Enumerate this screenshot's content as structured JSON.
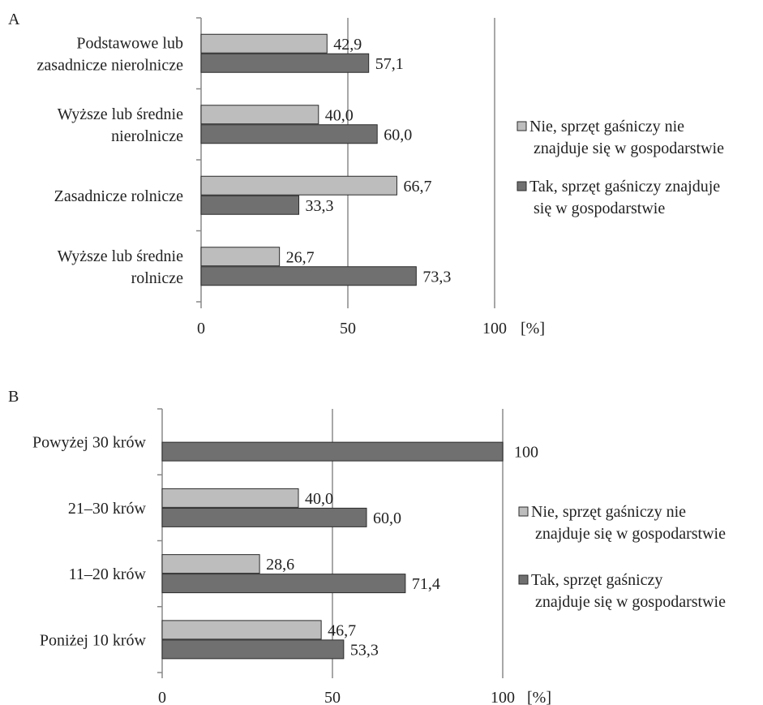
{
  "colors": {
    "no": "#bdbdbd",
    "yes": "#707070",
    "grid": "#a8a8a8",
    "axis": "#888888",
    "stroke": "#2a2a2a"
  },
  "chart_data": [
    {
      "type": "bar",
      "panel_label": "A",
      "orientation": "horizontal",
      "categories": [
        [
          "Podstawowe lub",
          "zasadnicze nierolnicze"
        ],
        [
          "Wyższe lub średnie",
          "nierolnicze"
        ],
        [
          "Zasadnicze rolnicze"
        ],
        [
          "Wyższe lub średnie",
          "rolnicze"
        ]
      ],
      "series": [
        {
          "name": "Nie, sprzęt gaśniczy nie znajduje się w gospodarstwie",
          "legend_lines": [
            "Nie, sprzęt gaśniczy nie",
            "znajduje się w gospodarstwie"
          ],
          "values": [
            42.9,
            40.0,
            66.7,
            26.7
          ],
          "labels": [
            "42,9",
            "40,0",
            "66,7",
            "26,7"
          ]
        },
        {
          "name": "Tak, sprzęt gaśniczy znajduje się w gospodarstwie",
          "legend_lines": [
            "Tak, sprzęt gaśniczy znajduje",
            "się w gospodarstwie"
          ],
          "values": [
            57.1,
            60.0,
            33.3,
            73.3
          ],
          "labels": [
            "57,1",
            "60,0",
            "33,3",
            "73,3"
          ]
        }
      ],
      "xlim": [
        0,
        100
      ],
      "xticks": [
        "0",
        "50",
        "100"
      ],
      "unit": "[%]",
      "grid": true,
      "legend_position": "right"
    },
    {
      "type": "bar",
      "panel_label": "B",
      "orientation": "horizontal",
      "categories": [
        [
          "Powyżej 30 krów"
        ],
        [
          "21–30 krów"
        ],
        [
          "11–20 krów"
        ],
        [
          "Poniżej 10 krów"
        ]
      ],
      "series": [
        {
          "name": "Nie, sprzęt gaśniczy nie znajduje się w gospodarstwie",
          "legend_lines": [
            "Nie, sprzęt gaśniczy nie",
            "znajduje się w gospodarstwie"
          ],
          "values": [
            0,
            40.0,
            28.6,
            46.7
          ],
          "labels": [
            "",
            "40,0",
            "28,6",
            "46,7"
          ]
        },
        {
          "name": "Tak, sprzęt gaśniczy znajduje się w gospodarstwie",
          "legend_lines": [
            "Tak, sprzęt gaśniczy",
            "znajduje się w gospodarstwie"
          ],
          "values": [
            100,
            60.0,
            71.4,
            53.3
          ],
          "labels": [
            "100",
            "60,0",
            "71,4",
            "53,3"
          ]
        }
      ],
      "xlim": [
        0,
        100
      ],
      "xticks": [
        "0",
        "50",
        "100"
      ],
      "unit": "[%]",
      "grid": true,
      "legend_position": "right"
    }
  ]
}
